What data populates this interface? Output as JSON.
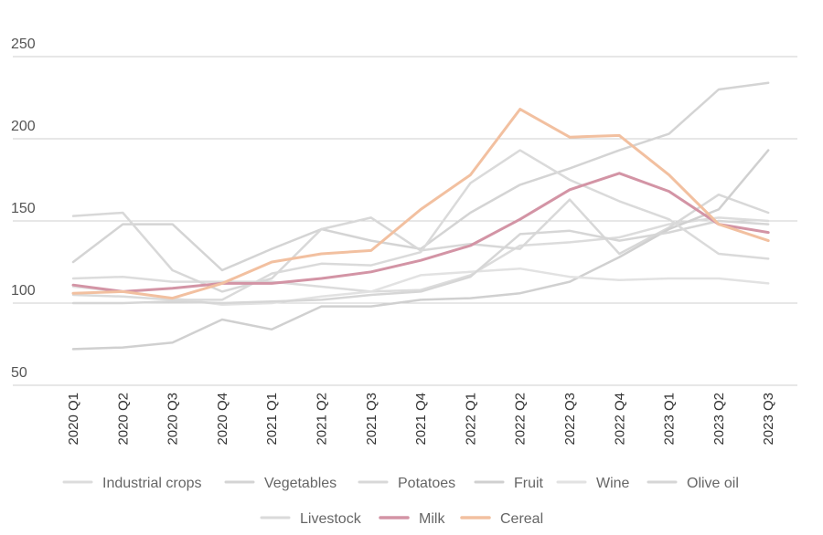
{
  "chart_data": {
    "type": "line",
    "categories": [
      "2020 Q1",
      "2020 Q2",
      "2020 Q3",
      "2020 Q4",
      "2021 Q1",
      "2021 Q2",
      "2021 Q3",
      "2021 Q4",
      "2022 Q1",
      "2022 Q2",
      "2022 Q3",
      "2022 Q4",
      "2023 Q1",
      "2023 Q2",
      "2023 Q3"
    ],
    "yticks": [
      50,
      100,
      150,
      200,
      250
    ],
    "ylim": [
      50,
      250
    ],
    "grid": true,
    "legend_position": "bottom",
    "series": [
      {
        "name": "Industrial crops",
        "color": "#dcdcdc",
        "highlight": false,
        "values": [
          115,
          116,
          113,
          113,
          113,
          110,
          107,
          108,
          117,
          135,
          137,
          140,
          148,
          152,
          150
        ]
      },
      {
        "name": "Vegetables",
        "color": "#d4d4d4",
        "highlight": false,
        "values": [
          125,
          148,
          148,
          120,
          133,
          145,
          138,
          133,
          155,
          172,
          182,
          193,
          203,
          230,
          234
        ]
      },
      {
        "name": "Potatoes",
        "color": "#d8d8d8",
        "highlight": false,
        "values": [
          153,
          155,
          120,
          107,
          115,
          145,
          152,
          132,
          136,
          133,
          163,
          130,
          146,
          166,
          155
        ]
      },
      {
        "name": "Fruit",
        "color": "#d0d0d0",
        "highlight": false,
        "values": [
          72,
          73,
          76,
          90,
          84,
          98,
          98,
          102,
          103,
          106,
          113,
          128,
          145,
          157,
          193
        ]
      },
      {
        "name": "Wine",
        "color": "#e2e2e2",
        "highlight": false,
        "values": [
          110,
          107,
          103,
          99,
          100,
          104,
          107,
          117,
          119,
          121,
          116,
          114,
          115,
          115,
          112
        ]
      },
      {
        "name": "Olive oil",
        "color": "#d6d6d6",
        "highlight": false,
        "values": [
          100,
          100,
          101,
          100,
          101,
          102,
          105,
          107,
          116,
          142,
          144,
          138,
          143,
          150,
          148
        ]
      },
      {
        "name": "Livestock",
        "color": "#dadada",
        "highlight": false,
        "values": [
          105,
          104,
          102,
          102,
          118,
          124,
          123,
          131,
          173,
          193,
          175,
          162,
          151,
          130,
          127
        ]
      },
      {
        "name": "Milk",
        "color": "#d394a5",
        "highlight": true,
        "values": [
          111,
          107,
          109,
          112,
          112,
          115,
          119,
          126,
          135,
          151,
          169,
          179,
          168,
          148,
          143
        ]
      },
      {
        "name": "Cereal",
        "color": "#f2c0a0",
        "highlight": true,
        "values": [
          106,
          107,
          103,
          112,
          125,
          130,
          132,
          157,
          178,
          218,
          201,
          202,
          178,
          148,
          138
        ]
      }
    ]
  }
}
